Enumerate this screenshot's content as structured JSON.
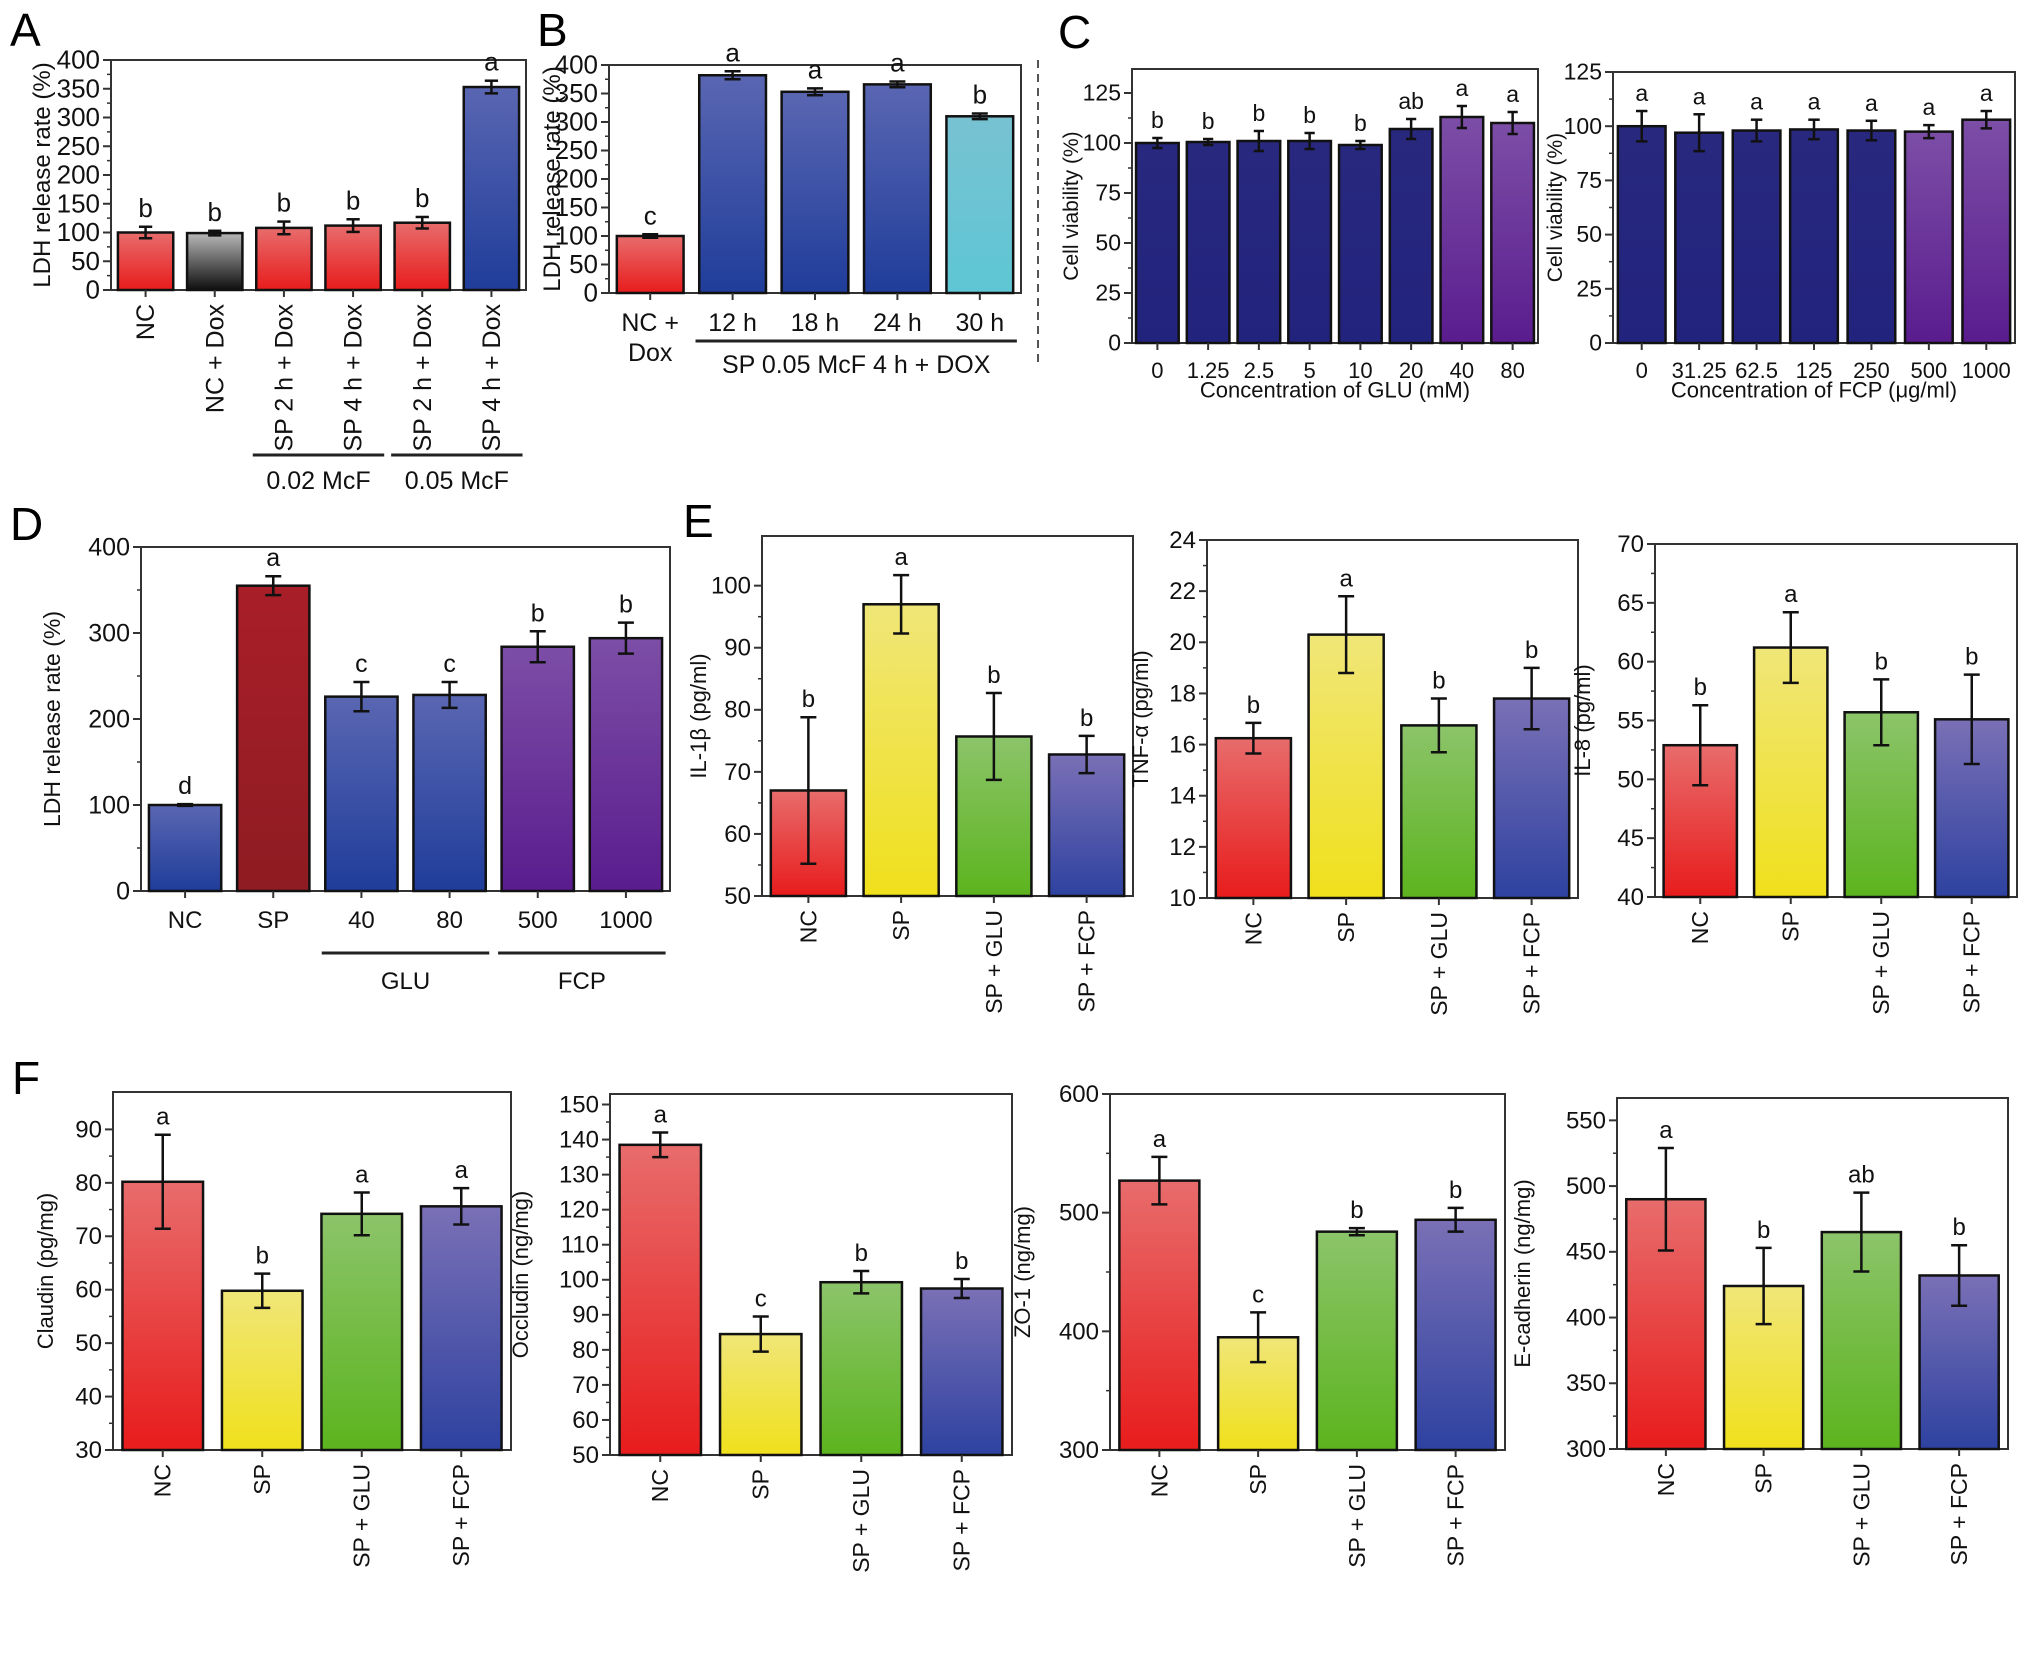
{
  "figure": {
    "panel_letters": [
      "A",
      "B",
      "C",
      "D",
      "E",
      "F"
    ]
  },
  "colors": {
    "red": "#e8242a",
    "gray": "#111111",
    "blue": "#2c3f9a",
    "cyan": "#6fc6d6",
    "navy": "#2a2a8a",
    "purple": "#5e2a92",
    "darkred": "#9a1c24",
    "yellow": "#f0e02a",
    "green": "#64b62a",
    "slate": "#3e4a9e"
  },
  "chart_data": [
    {
      "id": "A",
      "type": "bar",
      "title": "",
      "ylabel": "LDH release rate (%)",
      "xlabel": "",
      "ylim": [
        0,
        400
      ],
      "yticks": [
        0,
        50,
        100,
        150,
        200,
        250,
        300,
        350,
        400
      ],
      "categories": [
        "NC",
        "NC + Dox",
        "SP 2 h + Dox",
        "SP 4 h + Dox",
        "SP 2 h + Dox",
        "SP 4 h + Dox"
      ],
      "values": [
        100,
        99,
        108,
        112,
        117,
        353
      ],
      "errors": [
        10,
        4,
        11,
        11,
        10,
        11
      ],
      "significance": [
        "b",
        "b",
        "b",
        "b",
        "b",
        "a"
      ],
      "bar_colors": [
        "red",
        "gray",
        "red",
        "red",
        "red",
        "blue"
      ],
      "x_tick_rotation": "vertical",
      "groups": [
        {
          "label": "0.02 McF",
          "from": 2,
          "to": 3
        },
        {
          "label": "0.05 McF",
          "from": 4,
          "to": 5
        }
      ]
    },
    {
      "id": "B",
      "type": "bar",
      "title": "",
      "ylabel": "LDH release rate (%)",
      "xlabel": "",
      "ylim": [
        0,
        400
      ],
      "yticks": [
        0,
        50,
        100,
        150,
        200,
        250,
        300,
        350,
        400
      ],
      "categories": [
        "NC +\nDox",
        "12 h",
        "18 h",
        "24 h",
        "30 h"
      ],
      "values": [
        100,
        382,
        353,
        366,
        310
      ],
      "errors": [
        3,
        7,
        6,
        5,
        5
      ],
      "significance": [
        "c",
        "a",
        "a",
        "a",
        "b"
      ],
      "bar_colors": [
        "red",
        "blue",
        "blue",
        "blue",
        "cyan"
      ],
      "x_tick_rotation": "horizontal",
      "groups": [
        {
          "label": "SP 0.05 McF 4 h + DOX",
          "from": 1,
          "to": 4
        }
      ]
    },
    {
      "id": "C1",
      "type": "bar",
      "title": "",
      "ylabel": "Cell viability (%)",
      "xlabel": "Concentration of GLU (mM)",
      "ylim": [
        0,
        137
      ],
      "yticks": [
        0,
        25,
        50,
        75,
        100,
        125
      ],
      "categories": [
        "0",
        "1.25",
        "2.5",
        "5",
        "10",
        "20",
        "40",
        "80"
      ],
      "values": [
        100,
        100.5,
        101,
        101,
        99,
        107,
        113,
        110
      ],
      "errors": [
        2.5,
        1.5,
        5,
        4,
        2,
        5,
        5.5,
        5.5
      ],
      "significance": [
        "b",
        "b",
        "b",
        "b",
        "b",
        "ab",
        "a",
        "a"
      ],
      "bar_colors": [
        "navy",
        "navy",
        "navy",
        "navy",
        "navy",
        "navy",
        "purple",
        "purple"
      ],
      "x_tick_rotation": "horizontal",
      "groups": []
    },
    {
      "id": "C2",
      "type": "bar",
      "title": "",
      "ylabel": "Cell viability (%)",
      "xlabel": "Concentration of FCP (μg/ml)",
      "ylim": [
        0,
        125
      ],
      "yticks": [
        0,
        25,
        50,
        75,
        100,
        125
      ],
      "categories": [
        "0",
        "31.25",
        "62.5",
        "125",
        "250",
        "500",
        "1000"
      ],
      "values": [
        100,
        97,
        98,
        98.5,
        98,
        97.5,
        103
      ],
      "errors": [
        7,
        8.5,
        5,
        4.5,
        4.5,
        3,
        4
      ],
      "significance": [
        "a",
        "a",
        "a",
        "a",
        "a",
        "a",
        "a"
      ],
      "bar_colors": [
        "navy",
        "navy",
        "navy",
        "navy",
        "navy",
        "purple",
        "purple"
      ],
      "x_tick_rotation": "horizontal",
      "groups": []
    },
    {
      "id": "D",
      "type": "bar",
      "title": "",
      "ylabel": "LDH release rate (%)",
      "xlabel": "",
      "ylim": [
        0,
        400
      ],
      "yticks": [
        0,
        100,
        200,
        300,
        400
      ],
      "categories": [
        "NC",
        "SP",
        "40",
        "80",
        "500",
        "1000"
      ],
      "values": [
        100,
        355,
        226,
        228,
        284,
        294
      ],
      "errors": [
        1,
        11,
        17,
        15,
        18,
        18
      ],
      "significance": [
        "d",
        "a",
        "c",
        "c",
        "b",
        "b"
      ],
      "bar_colors": [
        "blue",
        "darkred",
        "blue",
        "blue",
        "purple",
        "purple"
      ],
      "x_tick_rotation": "horizontal",
      "groups": [
        {
          "label": "GLU",
          "from": 2,
          "to": 3
        },
        {
          "label": "FCP",
          "from": 4,
          "to": 5
        }
      ]
    },
    {
      "id": "E1",
      "type": "bar",
      "title": "",
      "ylabel": "IL-1β (pg/ml)",
      "xlabel": "",
      "ylim": [
        50,
        108
      ],
      "yticks": [
        50,
        60,
        70,
        80,
        90,
        100
      ],
      "categories": [
        "NC",
        "SP",
        "SP + GLU",
        "SP + FCP"
      ],
      "values": [
        67,
        97,
        75.7,
        72.8
      ],
      "errors": [
        11.8,
        4.7,
        7,
        3
      ],
      "significance": [
        "b",
        "a",
        "b",
        "b"
      ],
      "bar_colors": [
        "red",
        "yellow",
        "green",
        "slate"
      ],
      "x_tick_rotation": "vertical",
      "groups": []
    },
    {
      "id": "E2",
      "type": "bar",
      "title": "",
      "ylabel": "TNF-α (pg/ml)",
      "xlabel": "",
      "ylim": [
        10,
        24
      ],
      "yticks": [
        10,
        12,
        14,
        16,
        18,
        20,
        22,
        24
      ],
      "categories": [
        "NC",
        "SP",
        "SP + GLU",
        "SP + FCP"
      ],
      "values": [
        16.25,
        20.3,
        16.75,
        17.8
      ],
      "errors": [
        0.6,
        1.5,
        1.05,
        1.2
      ],
      "significance": [
        "b",
        "a",
        "b",
        "b"
      ],
      "bar_colors": [
        "red",
        "yellow",
        "green",
        "slate"
      ],
      "x_tick_rotation": "vertical",
      "groups": []
    },
    {
      "id": "E3",
      "type": "bar",
      "title": "",
      "ylabel": "IL-8 (pg/ml)",
      "xlabel": "",
      "ylim": [
        40,
        70
      ],
      "yticks": [
        40,
        45,
        50,
        55,
        60,
        65,
        70
      ],
      "categories": [
        "NC",
        "SP",
        "SP + GLU",
        "SP + FCP"
      ],
      "values": [
        52.9,
        61.2,
        55.7,
        55.1
      ],
      "errors": [
        3.4,
        3.0,
        2.8,
        3.8
      ],
      "significance": [
        "b",
        "a",
        "b",
        "b"
      ],
      "bar_colors": [
        "red",
        "yellow",
        "green",
        "slate"
      ],
      "x_tick_rotation": "vertical",
      "groups": []
    },
    {
      "id": "F1",
      "type": "bar",
      "title": "",
      "ylabel": "Claudin (pg/mg)",
      "xlabel": "",
      "ylim": [
        30,
        97
      ],
      "yticks": [
        30,
        40,
        50,
        60,
        70,
        80,
        90
      ],
      "categories": [
        "NC",
        "SP",
        "SP + GLU",
        "SP + FCP"
      ],
      "values": [
        80.2,
        59.8,
        74.2,
        75.6
      ],
      "errors": [
        8.8,
        3.2,
        4.0,
        3.4
      ],
      "significance": [
        "a",
        "b",
        "a",
        "a"
      ],
      "bar_colors": [
        "red",
        "yellow",
        "green",
        "slate"
      ],
      "x_tick_rotation": "vertical",
      "groups": []
    },
    {
      "id": "F2",
      "type": "bar",
      "title": "",
      "ylabel": "Occludin (ng/mg)",
      "xlabel": "",
      "ylim": [
        50,
        153
      ],
      "yticks": [
        50,
        60,
        70,
        80,
        90,
        100,
        110,
        120,
        130,
        140,
        150
      ],
      "categories": [
        "NC",
        "SP",
        "SP + GLU",
        "SP + FCP"
      ],
      "values": [
        138.5,
        84.5,
        99.3,
        97.5
      ],
      "errors": [
        3.5,
        5.0,
        3.2,
        2.7
      ],
      "significance": [
        "a",
        "c",
        "b",
        "b"
      ],
      "bar_colors": [
        "red",
        "yellow",
        "green",
        "slate"
      ],
      "x_tick_rotation": "vertical",
      "groups": []
    },
    {
      "id": "F3",
      "type": "bar",
      "title": "",
      "ylabel": "ZO-1 (ng/mg)",
      "xlabel": "",
      "ylim": [
        300,
        600
      ],
      "yticks": [
        300,
        400,
        500,
        600
      ],
      "categories": [
        "NC",
        "SP",
        "SP + GLU",
        "SP + FCP"
      ],
      "values": [
        527,
        395,
        484,
        494
      ],
      "errors": [
        20,
        21,
        3,
        10
      ],
      "significance": [
        "a",
        "c",
        "b",
        "b"
      ],
      "bar_colors": [
        "red",
        "yellow",
        "green",
        "slate"
      ],
      "x_tick_rotation": "vertical",
      "groups": []
    },
    {
      "id": "F4",
      "type": "bar",
      "title": "",
      "ylabel": "E-cadherin (ng/mg)",
      "xlabel": "",
      "ylim": [
        300,
        567
      ],
      "yticks": [
        300,
        350,
        400,
        450,
        500,
        550
      ],
      "categories": [
        "NC",
        "SP",
        "SP + GLU",
        "SP + FCP"
      ],
      "values": [
        490,
        424,
        465,
        432
      ],
      "errors": [
        39,
        29,
        30,
        23
      ],
      "significance": [
        "a",
        "b",
        "ab",
        "b"
      ],
      "bar_colors": [
        "red",
        "yellow",
        "green",
        "slate"
      ],
      "x_tick_rotation": "vertical",
      "groups": []
    }
  ]
}
